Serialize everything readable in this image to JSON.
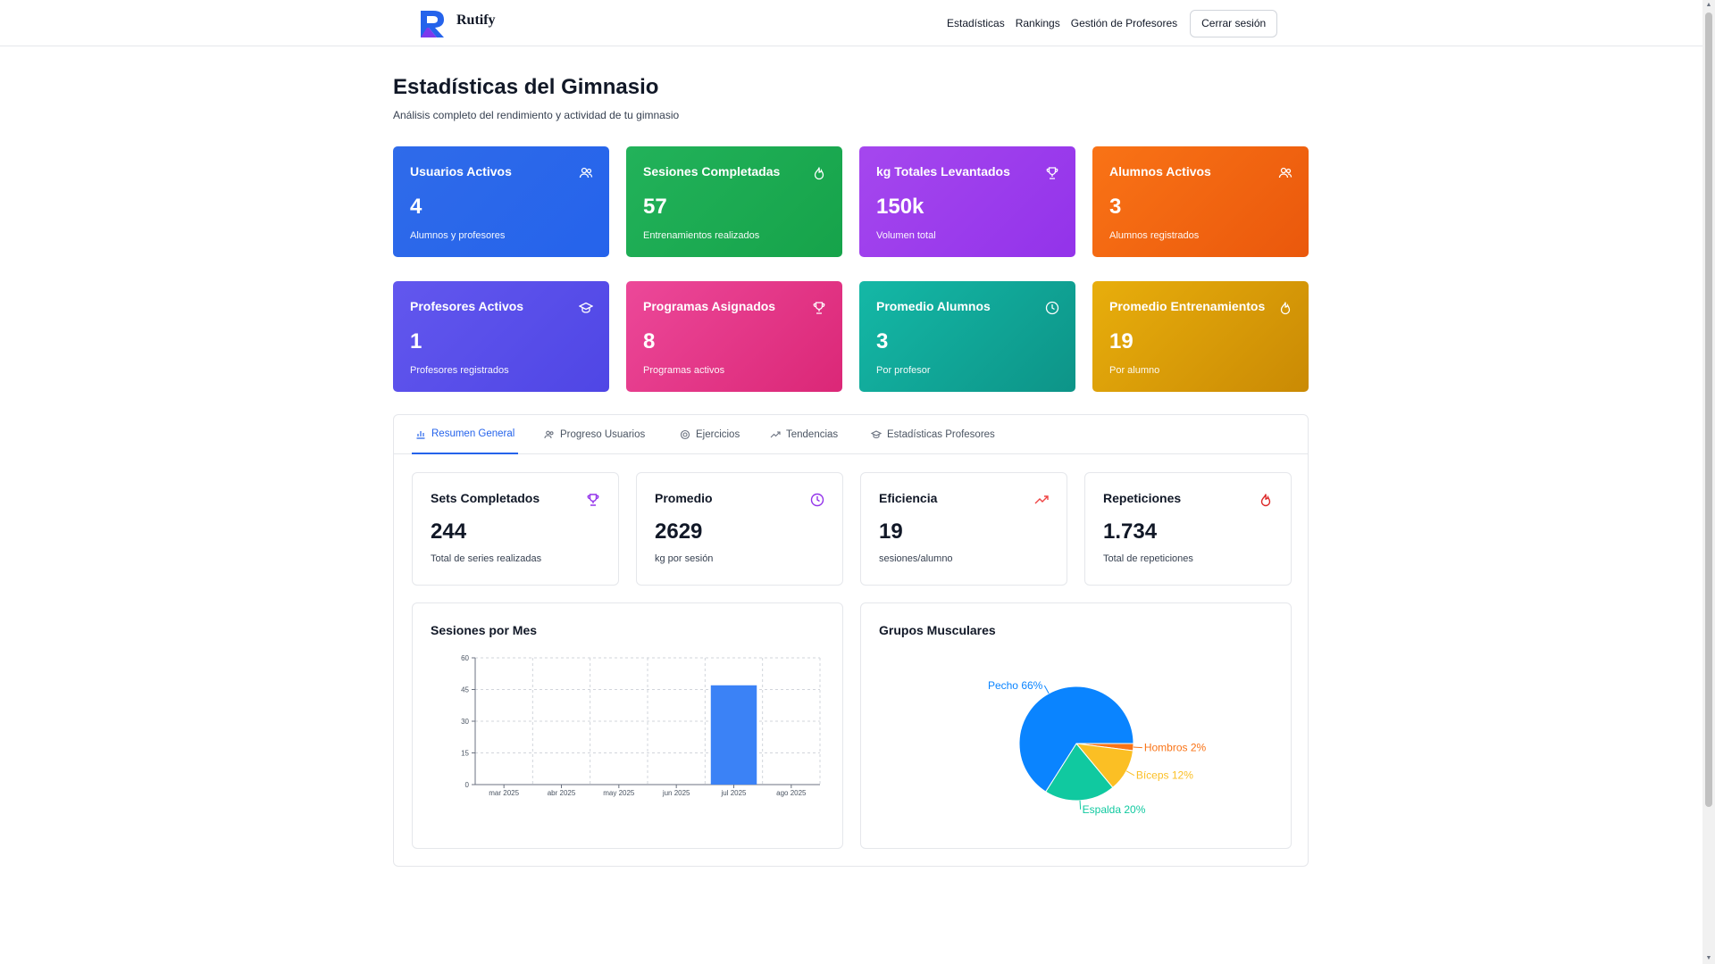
{
  "header": {
    "brand": "Rutify",
    "nav": [
      "Estadísticas",
      "Rankings",
      "Gestión de Profesores"
    ],
    "logout": "Cerrar sesión",
    "brand_colors": {
      "logo_primary": "#7c3aed",
      "logo_secondary": "#2563eb"
    }
  },
  "page": {
    "title": "Estadísticas del Gimnasio",
    "subtitle": "Análisis completo del rendimiento y actividad de tu gimnasio"
  },
  "stat_cards": [
    {
      "title": "Usuarios Activos",
      "value": "4",
      "sub": "Alumnos y profesores",
      "icon": "users-icon",
      "color": "#2563eb"
    },
    {
      "title": "Sesiones Completadas",
      "value": "57",
      "sub": "Entrenamientos realizados",
      "icon": "flame-icon",
      "color": "#16a34a"
    },
    {
      "title": "kg Totales Levantados",
      "value": "150k",
      "sub": "Volumen total",
      "icon": "trophy-icon",
      "color": "#9333ea"
    },
    {
      "title": "Alumnos Activos",
      "value": "3",
      "sub": "Alumnos registrados",
      "icon": "users-icon",
      "color": "#ea580c"
    },
    {
      "title": "Profesores Activos",
      "value": "1",
      "sub": "Profesores registrados",
      "icon": "graduation-cap-icon",
      "color": "#4f46e5"
    },
    {
      "title": "Programas Asignados",
      "value": "8",
      "sub": "Programas activos",
      "icon": "trophy-icon",
      "color": "#db2777"
    },
    {
      "title": "Promedio Alumnos",
      "value": "3",
      "sub": "Por profesor",
      "icon": "clock-icon",
      "color": "#0d9488"
    },
    {
      "title": "Promedio Entrenamientos",
      "value": "19",
      "sub": "Por alumno",
      "icon": "flame-icon",
      "color": "#ca8a04"
    }
  ],
  "tabs": [
    "Resumen General",
    "Progreso Usuarios",
    "Ejercicios",
    "Tendencias",
    "Estadísticas Profesores"
  ],
  "active_tab": "Resumen General",
  "summary_cards": [
    {
      "title": "Sets Completados",
      "value": "244",
      "sub": "Total de series realizadas",
      "icon": "trophy-icon",
      "color": "#9333ea"
    },
    {
      "title": "Promedio",
      "value": "2629",
      "sub": "kg por sesión",
      "icon": "clock-icon",
      "color": "#9333ea"
    },
    {
      "title": "Eficiencia",
      "value": "19",
      "sub": "sesiones/alumno",
      "icon": "trending-up-icon",
      "color": "#ef4444"
    },
    {
      "title": "Repeticiones",
      "value": "1.734",
      "sub": "Total de repeticiones",
      "icon": "flame-icon",
      "color": "#dc2626"
    }
  ],
  "chart_data": [
    {
      "type": "bar",
      "title": "Sesiones por Mes",
      "categories": [
        "mar 2025",
        "abr 2025",
        "may 2025",
        "jun 2025",
        "jul 2025",
        "ago 2025"
      ],
      "values": [
        0,
        0,
        0,
        0,
        47,
        0
      ],
      "ylim": [
        0,
        60
      ],
      "yticks": [
        0,
        15,
        30,
        45,
        60
      ],
      "grid": true,
      "color": "#3b82f6"
    },
    {
      "type": "pie",
      "title": "Grupos Musculares",
      "slices": [
        {
          "label": "Pecho 66%",
          "value": 66,
          "color": "#0a84ff"
        },
        {
          "label": "Hombros 2%",
          "value": 2,
          "color": "#f97316"
        },
        {
          "label": "Bíceps 12%",
          "value": 12,
          "color": "#fbbf24"
        },
        {
          "label": "Espalda 20%",
          "value": 20,
          "color": "#10c9a0"
        }
      ]
    }
  ]
}
